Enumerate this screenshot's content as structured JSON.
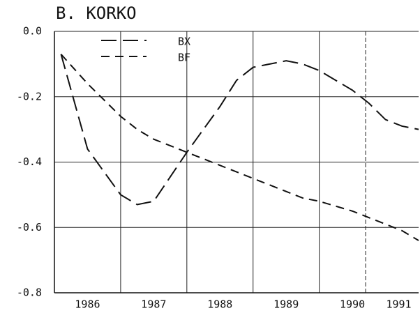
{
  "chart_data": {
    "type": "line",
    "title": "B.   KORKO",
    "x": [
      1986.1,
      1986.5,
      1987,
      1987.25,
      1987.5,
      1988,
      1988.5,
      1988.75,
      1989,
      1989.25,
      1989.5,
      1989.75,
      1990,
      1990.5,
      1990.75,
      1991,
      1991.25,
      1991.5
    ],
    "series": [
      {
        "name": "BX",
        "color": "#111",
        "dash": "long",
        "values": [
          -0.07,
          -0.36,
          -0.5,
          -0.53,
          -0.52,
          -0.37,
          -0.23,
          -0.15,
          -0.11,
          -0.1,
          -0.09,
          -0.1,
          -0.12,
          -0.18,
          -0.22,
          -0.27,
          -0.29,
          -0.3
        ]
      },
      {
        "name": "BF",
        "color": "#111",
        "dash": "short",
        "values": [
          -0.07,
          -0.16,
          -0.26,
          -0.3,
          -0.33,
          -0.37,
          -0.41,
          -0.43,
          -0.45,
          -0.47,
          -0.49,
          -0.51,
          -0.52,
          -0.55,
          -0.57,
          -0.59,
          -0.61,
          -0.64
        ]
      }
    ],
    "xlim": [
      1986,
      1991.5
    ],
    "xticks": [
      {
        "value": 1986.5,
        "label": "1986"
      },
      {
        "value": 1987.5,
        "label": "1987"
      },
      {
        "value": 1988.5,
        "label": "1988"
      },
      {
        "value": 1989.5,
        "label": "1989"
      },
      {
        "value": 1990.5,
        "label": "1990"
      },
      {
        "value": 1991.2,
        "label": "1991"
      }
    ],
    "xgrid": [
      1987,
      1988,
      1989,
      1990,
      1990.7
    ],
    "ylim": [
      -0.8,
      0
    ],
    "yticks": [
      {
        "value": 0,
        "label": "0.0"
      },
      -0.2,
      -0.4,
      -0.6,
      -0.8
    ],
    "grid": true,
    "legend": "top"
  }
}
